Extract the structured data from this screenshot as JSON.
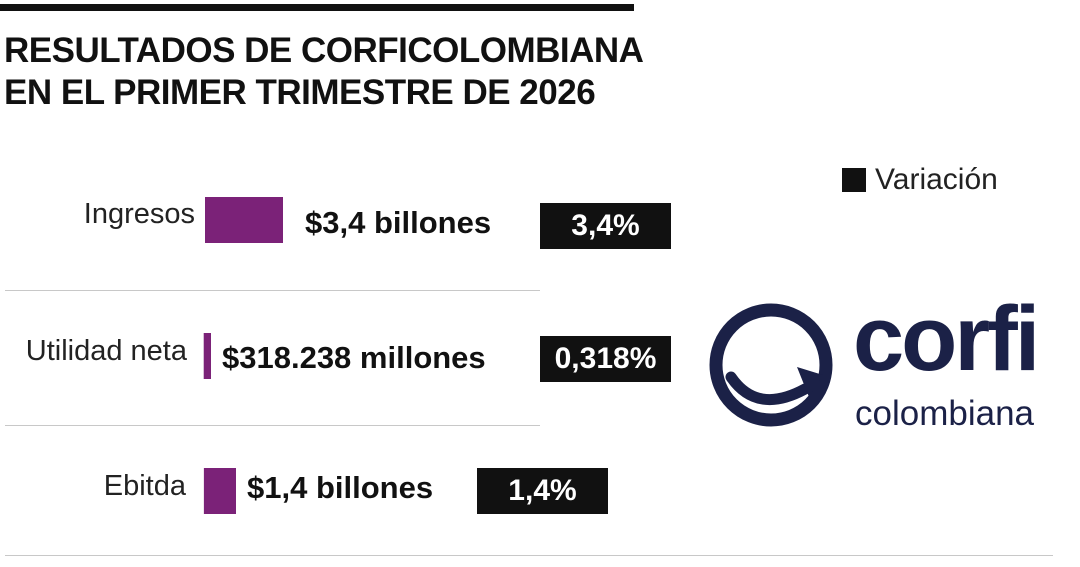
{
  "title": {
    "line1": "RESULTADOS DE CORFICOLOMBIANA",
    "line2": "EN EL PRIMER TRIMESTRE DE 2026"
  },
  "legend": {
    "label": "Variación",
    "color": "#111111"
  },
  "chart_data": {
    "type": "bar",
    "categories": [
      "Ingresos",
      "Utilidad neta",
      "Ebitda"
    ],
    "value_labels": [
      "$3,4 billones",
      "$318.238 millones",
      "$1,4 billones"
    ],
    "variation_labels": [
      "3,4%",
      "0,318%",
      "1,4%"
    ],
    "series": [
      {
        "name": "Variación",
        "values": [
          3.4,
          0.318,
          1.4
        ]
      }
    ],
    "bar_color": "#7b2278",
    "variation_box_color": "#111111"
  },
  "logo": {
    "word_top": "corfi",
    "word_bottom": "colombiana",
    "color": "#1b2147"
  }
}
